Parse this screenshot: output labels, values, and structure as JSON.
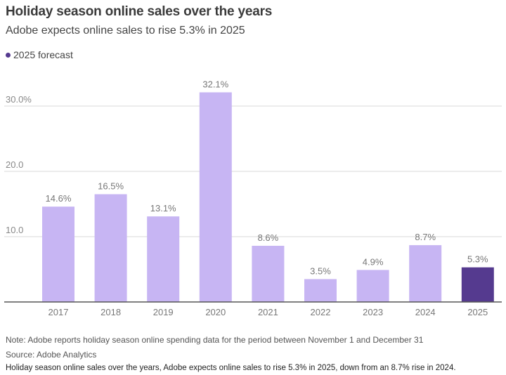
{
  "title": "Holiday season online sales over the years",
  "subtitle": "Adobe expects online sales to rise 5.3% in 2025",
  "legend": {
    "label": "2025 forecast",
    "color": "#553a8f"
  },
  "note": "Note: Adobe reports holiday season online spending data for the period between November 1 and December 31",
  "source": "Source: Adobe Analytics",
  "caption": "Holiday season online sales over the years, Adobe expects online sales to rise 5.3% in 2025, down from an 8.7% rise in 2024.",
  "chart_data": {
    "type": "bar",
    "categories": [
      "2017",
      "2018",
      "2019",
      "2020",
      "2021",
      "2022",
      "2023",
      "2024",
      "2025"
    ],
    "values": [
      14.6,
      16.5,
      13.1,
      32.1,
      8.6,
      3.5,
      4.9,
      8.7,
      5.3
    ],
    "value_labels": [
      "14.6%",
      "16.5%",
      "13.1%",
      "32.1%",
      "8.6%",
      "3.5%",
      "4.9%",
      "8.7%",
      "5.3%"
    ],
    "forecast": [
      false,
      false,
      false,
      false,
      false,
      false,
      false,
      false,
      true
    ],
    "yticks": [
      10,
      20,
      30
    ],
    "ytick_labels": [
      "10.0",
      "20.0",
      "30.0%"
    ],
    "ylim": [
      0,
      33
    ],
    "colors": {
      "actual": "#c7b5f3",
      "forecast": "#553a8f"
    },
    "title": "Holiday season online sales over the years",
    "xlabel": "",
    "ylabel": ""
  }
}
